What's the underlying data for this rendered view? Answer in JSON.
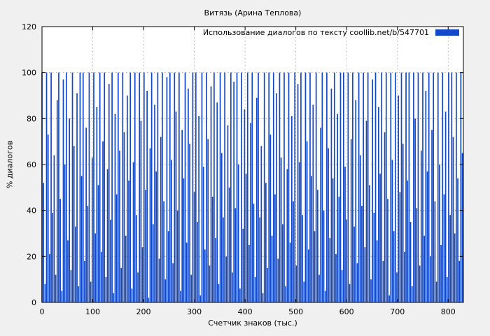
{
  "chart_data": {
    "type": "bar",
    "title": "Витязь (Арина Теплова)",
    "legend": "Использование диалогов по тексту  coollib.net/b/547701",
    "xlabel": "Счетчик знаков (тыс.)",
    "ylabel": "% диалогов",
    "xlim": [
      0,
      830
    ],
    "ylim": [
      0,
      120
    ],
    "xticks": [
      0,
      100,
      200,
      300,
      400,
      500,
      600,
      700,
      800
    ],
    "yticks": [
      0,
      20,
      40,
      60,
      80,
      100,
      120
    ],
    "grid": true,
    "legend_position": "top-right",
    "color": "#1349c8",
    "x_start": 0,
    "x_step": 3,
    "values": [
      100,
      52,
      8,
      100,
      73,
      21,
      100,
      39,
      64,
      12,
      88,
      100,
      45,
      5,
      97,
      60,
      100,
      27,
      80,
      14,
      100,
      68,
      33,
      91,
      7,
      100,
      55,
      100,
      18,
      76,
      42,
      100,
      9,
      63,
      100,
      30,
      85,
      51,
      100,
      22,
      70,
      100,
      11,
      58,
      95,
      36,
      100,
      4,
      82,
      47,
      100,
      66,
      15,
      100,
      74,
      29,
      90,
      53,
      100,
      6,
      61,
      100,
      38,
      13,
      100,
      79,
      24,
      100,
      49,
      92,
      2,
      67,
      100,
      34,
      86,
      57,
      100,
      19,
      72,
      100,
      44,
      10,
      98,
      31,
      100,
      62,
      17,
      100,
      83,
      40,
      100,
      5,
      75,
      54,
      100,
      26,
      93,
      69,
      12,
      100,
      48,
      100,
      35,
      81,
      3,
      100,
      59,
      23,
      100,
      71,
      16,
      94,
      46,
      100,
      28,
      87,
      8,
      100,
      65,
      37,
      100,
      20,
      77,
      50,
      100,
      13,
      96,
      41,
      100,
      60,
      6,
      100,
      32,
      84,
      56,
      100,
      25,
      78,
      100,
      43,
      11,
      89,
      100,
      37,
      68,
      4,
      100,
      52,
      15,
      100,
      73,
      29,
      100,
      47,
      91,
      19,
      100,
      63,
      34,
      100,
      7,
      58,
      100,
      26,
      81,
      44,
      100,
      16,
      95,
      61,
      100,
      38,
      9,
      100,
      70,
      23,
      100,
      55,
      86,
      31,
      100,
      49,
      12,
      76,
      100,
      40,
      5,
      100,
      67,
      28,
      93,
      54,
      100,
      21,
      82,
      46,
      100,
      14,
      100,
      59,
      36,
      100,
      8,
      71,
      100,
      33,
      88,
      17,
      100,
      64,
      42,
      100,
      24,
      79,
      100,
      51,
      10,
      97,
      39,
      100,
      27,
      85,
      56,
      100,
      18,
      74,
      100,
      45,
      3,
      100,
      62,
      31,
      100,
      13,
      90,
      48,
      100,
      69,
      22,
      100,
      53,
      100,
      35,
      7,
      100,
      80,
      41,
      100,
      16,
      66,
      100,
      29,
      92,
      57,
      100,
      20,
      75,
      100,
      44,
      9,
      100,
      60,
      25,
      100,
      47,
      83,
      11,
      100,
      38,
      100,
      72,
      30,
      100,
      54,
      18,
      100,
      65
    ]
  },
  "colors": {
    "background": "#f0f0f0",
    "plot_background": "#ffffff",
    "grid": "#9c9c9c",
    "border": "#000000",
    "bar": "#1349c8"
  }
}
